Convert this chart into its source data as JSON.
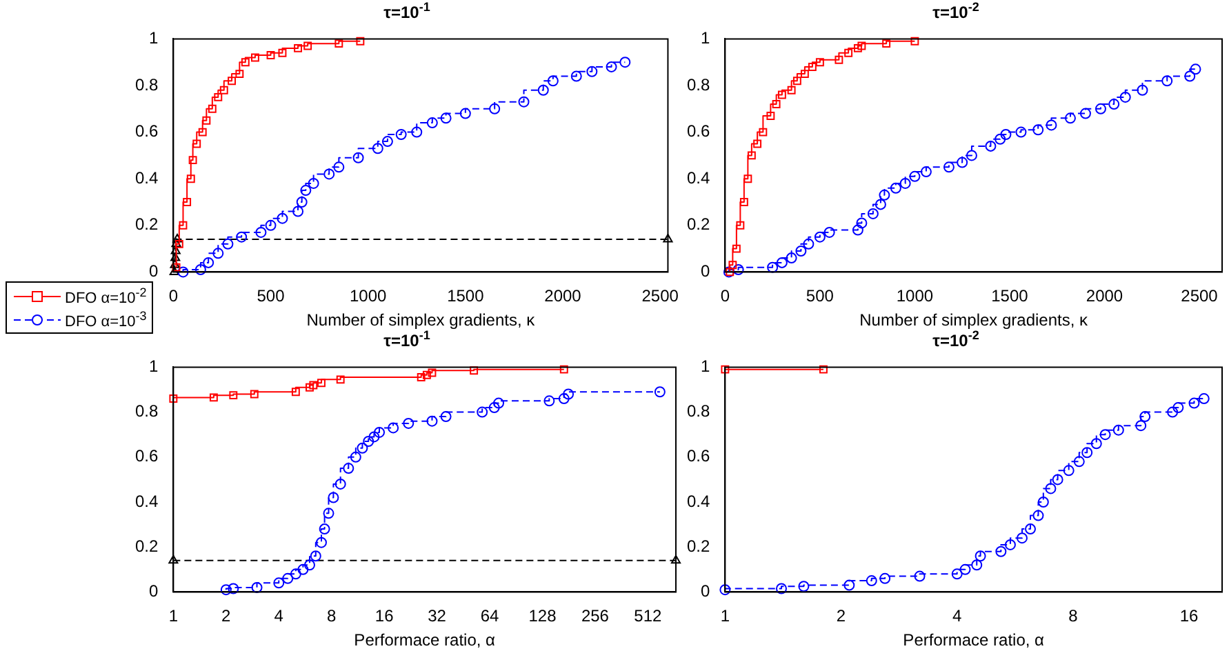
{
  "chart_data": [
    {
      "type": "step",
      "title": "τ=10$^{-1}$",
      "xlabel": "Number of simplex gradients, κ",
      "xlim": [
        0,
        2540
      ],
      "xticks": [
        0,
        500,
        1000,
        1500,
        2000,
        2500
      ],
      "ylim": [
        0,
        1
      ],
      "yticks": [
        0,
        0.2,
        0.4,
        0.6,
        0.8,
        1
      ],
      "grid": false,
      "legend": "left",
      "series": [
        {
          "name": "DFO α=10$^{-2}$",
          "color": "#ff0000",
          "marker": "square",
          "line_style": "solid",
          "x": [
            15,
            30,
            50,
            70,
            90,
            100,
            120,
            150,
            170,
            200,
            230,
            260,
            300,
            340,
            370,
            420,
            500,
            560,
            640,
            690,
            850,
            960
          ],
          "values": [
            0.02,
            0.12,
            0.2,
            0.3,
            0.4,
            0.48,
            0.55,
            0.6,
            0.65,
            0.7,
            0.75,
            0.78,
            0.82,
            0.85,
            0.9,
            0.92,
            0.93,
            0.94,
            0.96,
            0.97,
            0.98,
            0.99
          ]
        },
        {
          "name": "DFO α=10$^{-3}$",
          "color": "#0000ff",
          "marker": "circle",
          "line_style": "dashed",
          "x": [
            50,
            140,
            180,
            230,
            280,
            350,
            450,
            500,
            560,
            640,
            660,
            680,
            720,
            800,
            850,
            950,
            1050,
            1100,
            1170,
            1250,
            1330,
            1400,
            1500,
            1650,
            1800,
            1900,
            1950,
            2070,
            2150,
            2250,
            2320
          ],
          "values": [
            0,
            0.01,
            0.04,
            0.08,
            0.12,
            0.15,
            0.17,
            0.2,
            0.23,
            0.26,
            0.3,
            0.35,
            0.38,
            0.42,
            0.45,
            0.49,
            0.53,
            0.56,
            0.59,
            0.6,
            0.64,
            0.66,
            0.68,
            0.7,
            0.73,
            0.78,
            0.82,
            0.84,
            0.86,
            0.88,
            0.9
          ]
        },
        {
          "color": "#000000",
          "marker": "triangle",
          "line_style": "dashed",
          "x": [
            5,
            8,
            10,
            12,
            15,
            20,
            2540
          ],
          "values": [
            0,
            0.03,
            0.06,
            0.09,
            0.12,
            0.14,
            0.14
          ]
        }
      ]
    },
    {
      "type": "step",
      "title": "τ=10$^{-2}$",
      "xlabel": "Number of simplex gradients, κ",
      "xlim": [
        0,
        2620
      ],
      "xticks": [
        0,
        500,
        1000,
        1500,
        2000,
        2500
      ],
      "ylim": [
        0,
        1
      ],
      "yticks": [
        0,
        0.2,
        0.4,
        0.6,
        0.8,
        1
      ],
      "grid": false,
      "series": [
        {
          "color": "#ff0000",
          "marker": "square",
          "line_style": "solid",
          "x": [
            25,
            40,
            60,
            80,
            100,
            120,
            140,
            170,
            200,
            240,
            270,
            300,
            350,
            380,
            420,
            460,
            500,
            600,
            650,
            700,
            720,
            850,
            1000
          ],
          "values": [
            0,
            0.03,
            0.1,
            0.2,
            0.3,
            0.4,
            0.5,
            0.55,
            0.6,
            0.67,
            0.72,
            0.76,
            0.78,
            0.82,
            0.85,
            0.88,
            0.9,
            0.91,
            0.94,
            0.96,
            0.97,
            0.98,
            0.99
          ]
        },
        {
          "color": "#0000ff",
          "marker": "circle",
          "line_style": "dashed",
          "x": [
            20,
            70,
            250,
            300,
            350,
            400,
            440,
            500,
            550,
            700,
            720,
            780,
            820,
            840,
            900,
            950,
            1000,
            1060,
            1180,
            1250,
            1300,
            1400,
            1450,
            1480,
            1560,
            1650,
            1720,
            1820,
            1900,
            1980,
            2050,
            2110,
            2200,
            2330,
            2450,
            2480
          ],
          "values": [
            0,
            0.01,
            0.02,
            0.04,
            0.06,
            0.09,
            0.12,
            0.15,
            0.17,
            0.18,
            0.21,
            0.25,
            0.29,
            0.33,
            0.36,
            0.38,
            0.41,
            0.43,
            0.45,
            0.47,
            0.5,
            0.54,
            0.57,
            0.59,
            0.6,
            0.61,
            0.63,
            0.66,
            0.68,
            0.7,
            0.72,
            0.75,
            0.78,
            0.82,
            0.84,
            0.87
          ]
        }
      ]
    },
    {
      "type": "step",
      "title": "τ=10$^{-1}$",
      "xlabel": "Performace ratio, α",
      "log": "x",
      "xlim": [
        1,
        740
      ],
      "xticks": [
        1,
        2,
        4,
        8,
        16,
        32,
        64,
        128,
        256,
        512
      ],
      "ylim": [
        0,
        1
      ],
      "yticks": [
        0,
        0.2,
        0.4,
        0.6,
        0.8,
        1
      ],
      "grid": false,
      "series": [
        {
          "color": "#ff0000",
          "marker": "square",
          "line_style": "solid",
          "x": [
            1,
            1.7,
            2.2,
            2.9,
            5,
            6,
            6.3,
            7,
            9,
            26,
            28,
            30,
            52,
            170
          ],
          "values": [
            0.86,
            0.865,
            0.875,
            0.88,
            0.89,
            0.91,
            0.92,
            0.93,
            0.945,
            0.955,
            0.965,
            0.975,
            0.985,
            0.99
          ]
        },
        {
          "color": "#0000ff",
          "marker": "circle",
          "line_style": "dashed",
          "x": [
            2,
            2.2,
            3,
            4,
            4.5,
            5,
            5.5,
            6,
            6.5,
            7,
            7.3,
            7.7,
            8.2,
            9,
            10,
            11,
            12,
            13,
            14,
            15,
            18,
            22,
            30,
            36,
            58,
            68,
            72,
            140,
            170,
            180,
            600
          ],
          "values": [
            0.01,
            0.015,
            0.02,
            0.04,
            0.06,
            0.08,
            0.1,
            0.12,
            0.16,
            0.22,
            0.28,
            0.35,
            0.42,
            0.48,
            0.55,
            0.6,
            0.64,
            0.67,
            0.69,
            0.71,
            0.73,
            0.75,
            0.76,
            0.78,
            0.8,
            0.82,
            0.84,
            0.85,
            0.86,
            0.88,
            0.89
          ]
        },
        {
          "color": "#000000",
          "marker": "triangle",
          "line_style": "dashed",
          "x": [
            1,
            740
          ],
          "values": [
            0.14,
            0.14
          ]
        }
      ]
    },
    {
      "type": "step",
      "title": "τ=10$^{-2}$",
      "xlabel": "Performace ratio, α",
      "log": "x",
      "xlim": [
        1,
        19.5
      ],
      "xticks": [
        1,
        2,
        4,
        8,
        16
      ],
      "ylim": [
        0,
        1
      ],
      "yticks": [
        0,
        0.2,
        0.4,
        0.6,
        0.8,
        1
      ],
      "grid": false,
      "series": [
        {
          "color": "#ff0000",
          "marker": "square",
          "line_style": "solid",
          "x": [
            1,
            1.8
          ],
          "values": [
            0.99,
            0.99
          ]
        },
        {
          "color": "#0000ff",
          "marker": "circle",
          "line_style": "dashed",
          "x": [
            1,
            1.4,
            1.6,
            2.1,
            2.4,
            2.6,
            3.2,
            4,
            4.2,
            4.5,
            4.6,
            5.2,
            5.5,
            5.9,
            6.2,
            6.5,
            6.7,
            7,
            7.3,
            7.8,
            8.3,
            8.7,
            9.2,
            9.7,
            10.5,
            12,
            12.3,
            14.5,
            15,
            16.5,
            17.5
          ],
          "values": [
            0.01,
            0.015,
            0.025,
            0.03,
            0.05,
            0.06,
            0.07,
            0.08,
            0.1,
            0.12,
            0.16,
            0.18,
            0.21,
            0.24,
            0.28,
            0.34,
            0.4,
            0.46,
            0.5,
            0.54,
            0.58,
            0.62,
            0.66,
            0.7,
            0.72,
            0.74,
            0.78,
            0.8,
            0.82,
            0.84,
            0.86
          ]
        }
      ]
    }
  ]
}
